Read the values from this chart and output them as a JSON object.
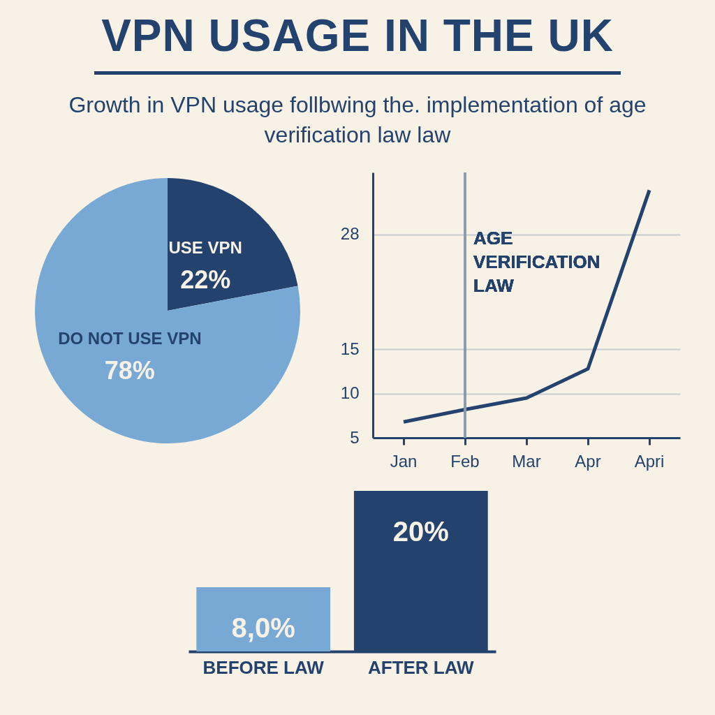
{
  "chart_data": [
    {
      "type": "pie",
      "title": "VPN USAGE IN THE UK",
      "subtitle": "Growth in VPN usage follbwing the. implementation of age verification law law",
      "categories": [
        "USE VPN",
        "DO NOT USE VPN"
      ],
      "values": [
        22,
        78
      ],
      "colors": [
        "#23426e",
        "#78a9d4"
      ],
      "value_labels": [
        "22%",
        "78%"
      ]
    },
    {
      "type": "line",
      "categories": [
        "Jan",
        "Feb",
        "Mar",
        "Apr",
        "Apri"
      ],
      "series": [
        {
          "color": "#23426e",
          "values": [
            6.8,
            8.2,
            9.5,
            12.8,
            33
          ]
        }
      ],
      "ylim": [
        5,
        35
      ],
      "yticks": [
        5,
        10,
        15,
        28
      ],
      "grid": "y",
      "ref_lines": [
        {
          "axis": "x",
          "value": "Feb",
          "label": "AGE VERIFICATION LAW",
          "color": "#8a9bb0"
        }
      ]
    },
    {
      "type": "bar",
      "categories": [
        "BEFORE LAW",
        "AFTER LAW"
      ],
      "values": [
        8,
        20
      ],
      "colors": [
        "#78a9d4",
        "#23426e"
      ],
      "value_labels": [
        "8,0%",
        "20%"
      ]
    }
  ]
}
